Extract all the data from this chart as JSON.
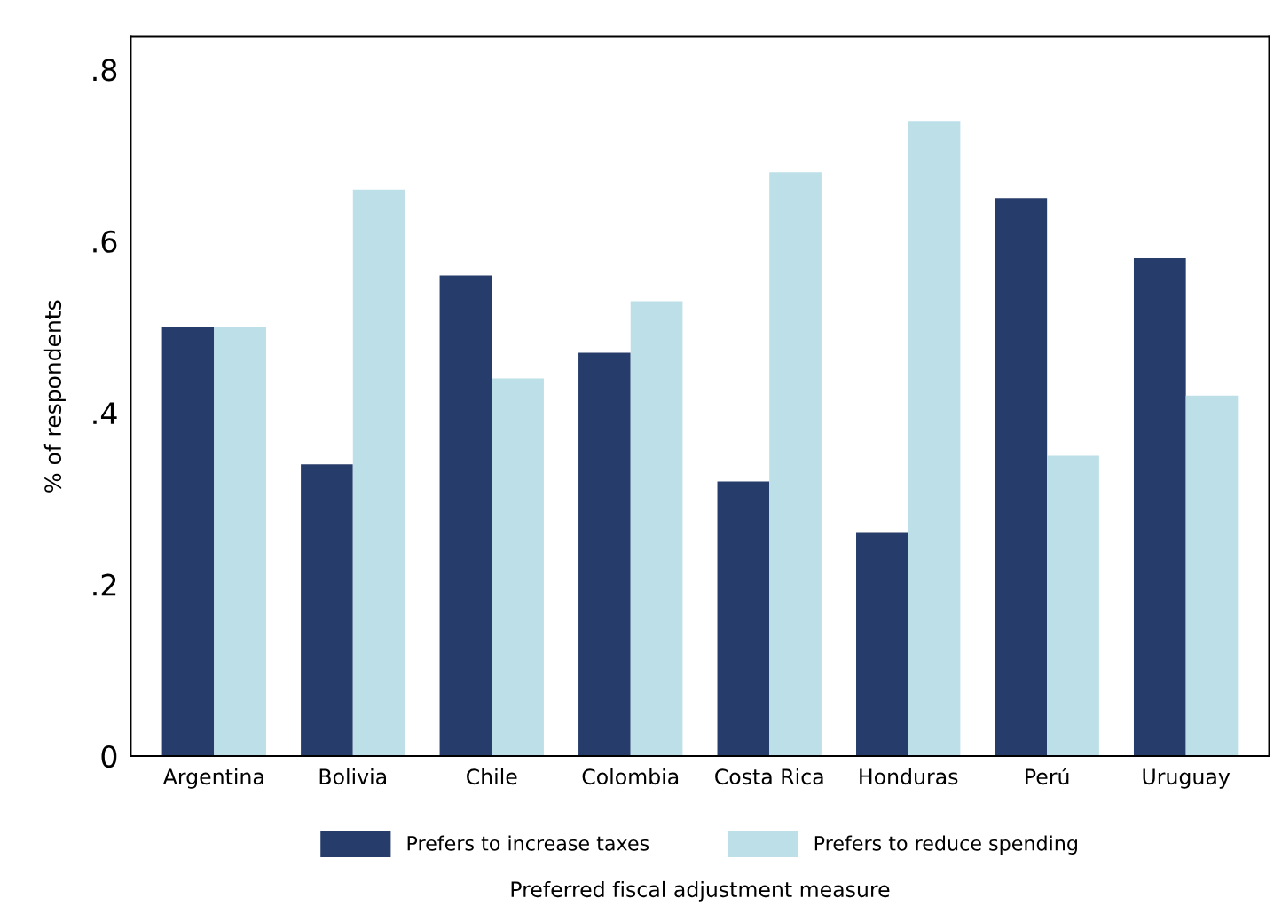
{
  "chart_data": {
    "type": "bar",
    "xlabel": "Preferred fiscal adjustment measure",
    "ylabel": "% of respondents",
    "categories": [
      "Argentina",
      "Bolivia",
      "Chile",
      "Colombia",
      "Costa Rica",
      "Honduras",
      "Perú",
      "Uruguay"
    ],
    "series": [
      {
        "name": "Prefers to increase taxes",
        "color": "#263d6b",
        "values": [
          0.5,
          0.34,
          0.56,
          0.47,
          0.32,
          0.26,
          0.65,
          0.58
        ]
      },
      {
        "name": "Prefers to reduce spending",
        "color": "#bcdfe8",
        "values": [
          0.5,
          0.66,
          0.44,
          0.53,
          0.68,
          0.74,
          0.35,
          0.42
        ]
      }
    ],
    "ylim": [
      0,
      0.838
    ],
    "yticks": [
      0,
      {
        "value": 0.2,
        "label": ".2"
      },
      {
        "value": 0.4,
        "label": ".4"
      },
      {
        "value": 0.6,
        "label": ".6"
      },
      {
        "value": 0.8,
        "label": ".8"
      }
    ],
    "grid": false,
    "legend": "bottom"
  }
}
